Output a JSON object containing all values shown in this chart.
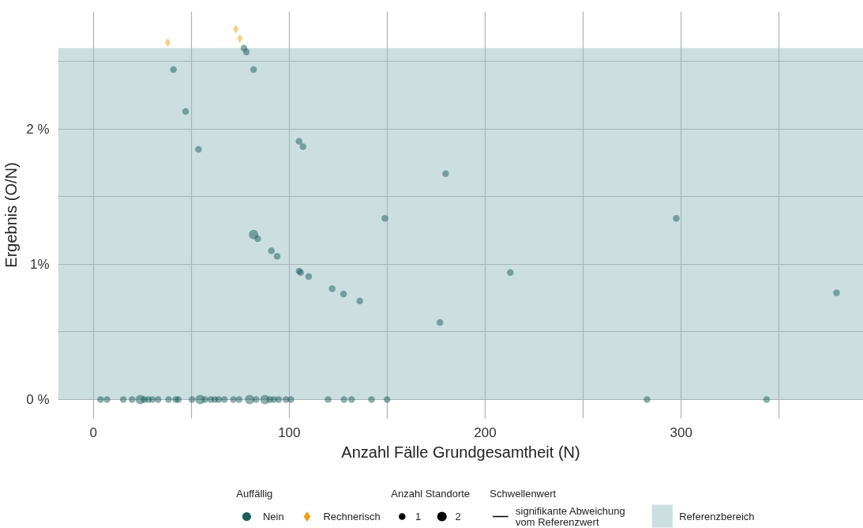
{
  "chart_data": {
    "type": "bubble",
    "xlabel": "Anzahl Fälle Grundgesamtheit (N)",
    "ylabel": "Ergebnis (O/N)",
    "legend_title": "Auffällig",
    "annotations": [
      "Anzahl Standorte",
      "Schwellenwert",
      "signifikante Abweichung\nvom Referenzwert"
    ],
    "xlim": [
      -18,
      393
    ],
    "ylim": [
      -0.14,
      2.87
    ],
    "xticks": [
      0,
      {
        "value": 50,
        "label": null
      },
      100,
      {
        "value": 150,
        "label": null
      },
      200,
      {
        "value": 250,
        "label": null
      },
      300,
      {
        "value": 350,
        "label": null
      }
    ],
    "yticks": [
      {
        "value": 0,
        "label": "0 %"
      },
      {
        "value": 0.5,
        "label": null
      },
      {
        "value": 1,
        "label": "1%"
      },
      {
        "value": 1.5,
        "label": null
      },
      {
        "value": 2,
        "label": "2 %"
      },
      {
        "value": 2.5,
        "label": null
      }
    ],
    "grid": true,
    "legend": "bottom",
    "size_legend": [
      1,
      2
    ],
    "bands": [
      {
        "axis": "y",
        "from": 0,
        "to": 2.6,
        "label": "Referenzbereich",
        "color": "#cbdfe1"
      }
    ],
    "series": [
      {
        "name": "Nein",
        "color": "#1b5e5a",
        "marker": "circle",
        "x": [
          76.9,
          78.1,
          40.9,
          81.8,
          47.1,
          53.7,
          105,
          107,
          179.8,
          148.8,
          297.5,
          81.8,
          83.9,
          90.9,
          93.8,
          105,
          105.8,
          109.9,
          121.9,
          127.7,
          136,
          176.9,
          212.8,
          379.3,
          3.7,
          7.0,
          15.3,
          19.8,
          24.0,
          26,
          28.1,
          30.2,
          33.1,
          38.4,
          42.1,
          43.4,
          50.4,
          54.5,
          57,
          59.9,
          62,
          64,
          66.9,
          71.5,
          74.4,
          79.8,
          83.1,
          87.6,
          90.1,
          92.1,
          94.6,
          98.3,
          100.8,
          119.8,
          128,
          131.8,
          142,
          149.9,
          282.6,
          343.6
        ],
        "values": [
          2.6,
          2.57,
          2.44,
          2.44,
          2.13,
          1.85,
          1.91,
          1.87,
          1.67,
          1.34,
          1.34,
          1.22,
          1.19,
          1.1,
          1.06,
          0.95,
          0.94,
          0.91,
          0.82,
          0.78,
          0.73,
          0.57,
          0.94,
          0.79,
          0,
          0,
          0,
          0,
          0,
          0,
          0,
          0,
          0,
          0,
          0,
          0,
          0,
          0,
          0,
          0,
          0,
          0,
          0,
          0,
          0,
          0,
          0,
          0,
          0,
          0,
          0,
          0,
          0,
          0,
          0,
          0,
          0,
          0,
          0,
          0
        ],
        "sizes": [
          1,
          1,
          1,
          1,
          1,
          1,
          1,
          1,
          1,
          1,
          1,
          2,
          1,
          1,
          1,
          1,
          1,
          1,
          1,
          1,
          1,
          1,
          1,
          1,
          1,
          1,
          1,
          1,
          2,
          1,
          1,
          1,
          1,
          1,
          1,
          1,
          1,
          2,
          1,
          1,
          1,
          1,
          1,
          1,
          1,
          2,
          1,
          2,
          1,
          1,
          1,
          1,
          1,
          1,
          1,
          1,
          1,
          1,
          1,
          1
        ]
      },
      {
        "name": "Rechnerisch",
        "color": "#e8a317",
        "marker": "diamond",
        "x": [
          38,
          72.7,
          74.8
        ],
        "values": [
          2.64,
          2.74,
          2.67
        ],
        "sizes": [
          1,
          1,
          1
        ]
      }
    ]
  }
}
